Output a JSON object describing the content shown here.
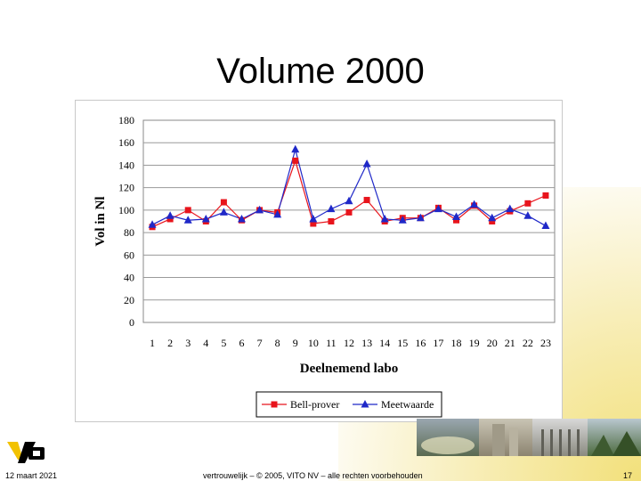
{
  "slide": {
    "title": "Volume 2000",
    "date": "12 maart 2021",
    "copyright": "vertrouwelijk – © 2005, VITO NV – alle rechten voorbehouden",
    "page_number": "17",
    "logo_text": "vito"
  },
  "chart_data": {
    "type": "line",
    "title": "",
    "xlabel": "Deelnemend labo",
    "ylabel": "Vol in Nl",
    "x": [
      1,
      2,
      3,
      4,
      5,
      6,
      7,
      8,
      9,
      10,
      11,
      12,
      13,
      14,
      15,
      16,
      17,
      18,
      19,
      20,
      21,
      22,
      23
    ],
    "ylim": [
      0,
      180
    ],
    "yticks": [
      0,
      20,
      40,
      60,
      80,
      100,
      120,
      140,
      160,
      180
    ],
    "grid": true,
    "legend": "bottom",
    "series": [
      {
        "name": "Bell-prover",
        "color": "#e8141c",
        "marker": "square",
        "values": [
          85,
          92,
          100,
          90,
          107,
          91,
          100,
          98,
          144,
          88,
          90,
          98,
          109,
          90,
          93,
          93,
          102,
          91,
          104,
          90,
          99,
          106,
          113
        ]
      },
      {
        "name": "Meetwaarde",
        "color": "#1f28c8",
        "marker": "triangle",
        "values": [
          87,
          95,
          91,
          92,
          98,
          92,
          100,
          96,
          154,
          92,
          101,
          108,
          141,
          92,
          91,
          93,
          101,
          94,
          105,
          93,
          101,
          95,
          86
        ]
      }
    ]
  }
}
